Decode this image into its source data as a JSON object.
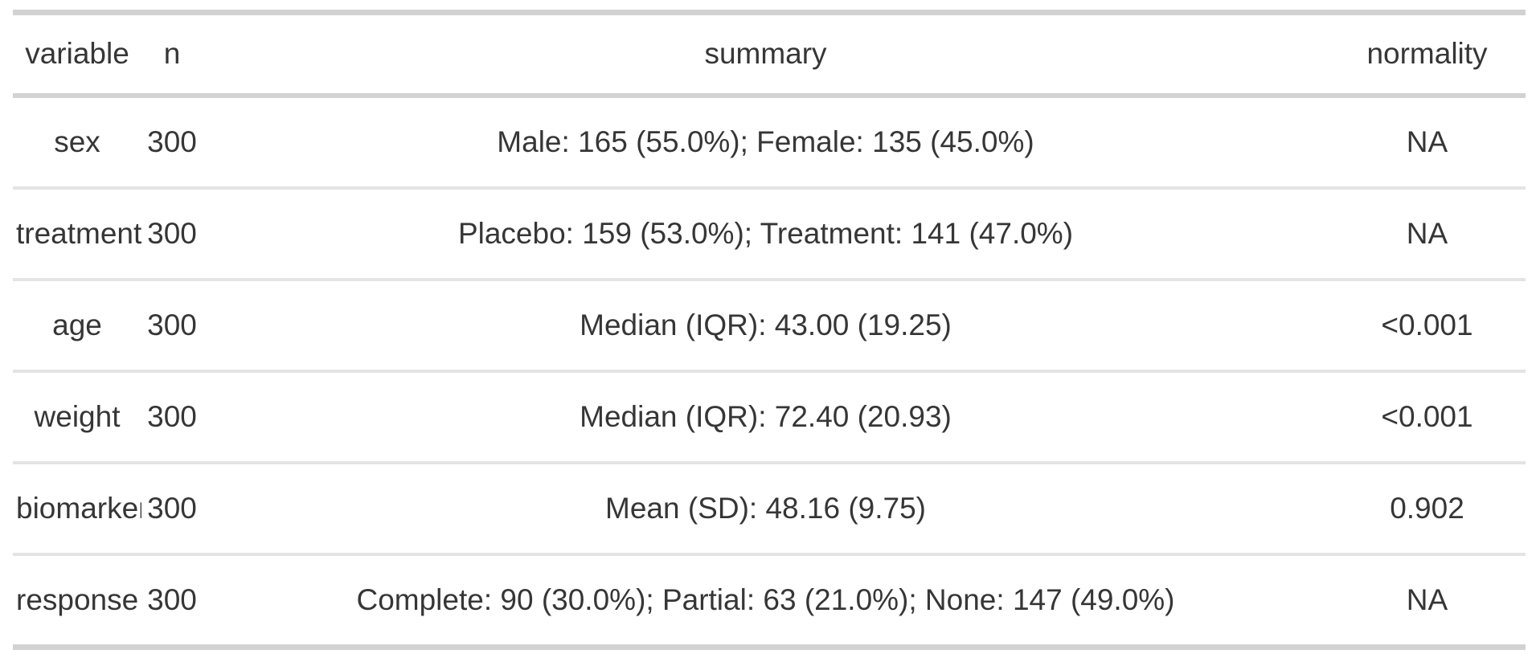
{
  "chart_data": {
    "type": "table",
    "columns": [
      {
        "label": "variable"
      },
      {
        "label": "n"
      },
      {
        "label": "summary"
      },
      {
        "label": "normality"
      }
    ],
    "rows": [
      {
        "variable": "sex",
        "n": "300",
        "summary": "Male: 165 (55.0%); Female: 135 (45.0%)",
        "normality": "NA"
      },
      {
        "variable": "treatment",
        "n": "300",
        "summary": "Placebo: 159 (53.0%); Treatment: 141 (47.0%)",
        "normality": "NA"
      },
      {
        "variable": "age",
        "n": "300",
        "summary": "Median (IQR): 43.00 (19.25)",
        "normality": "<0.001"
      },
      {
        "variable": "weight",
        "n": "300",
        "summary": "Median (IQR): 72.40 (20.93)",
        "normality": "<0.001"
      },
      {
        "variable": "biomarker",
        "n": "300",
        "summary": "Mean (SD): 48.16 (9.75)",
        "normality": "0.902"
      },
      {
        "variable": "response",
        "n": "300",
        "summary": "Complete: 90 (30.0%); Partial: 63 (21.0%); None: 147 (49.0%)",
        "normality": "NA"
      }
    ],
    "layout": {
      "grid": "horizontal-rules-only",
      "alignment": "center"
    }
  },
  "colors": {
    "background": "#ffffff",
    "text": "#363636",
    "border_heavy": "#d2d2d2",
    "border_light": "#e4e4e4"
  }
}
